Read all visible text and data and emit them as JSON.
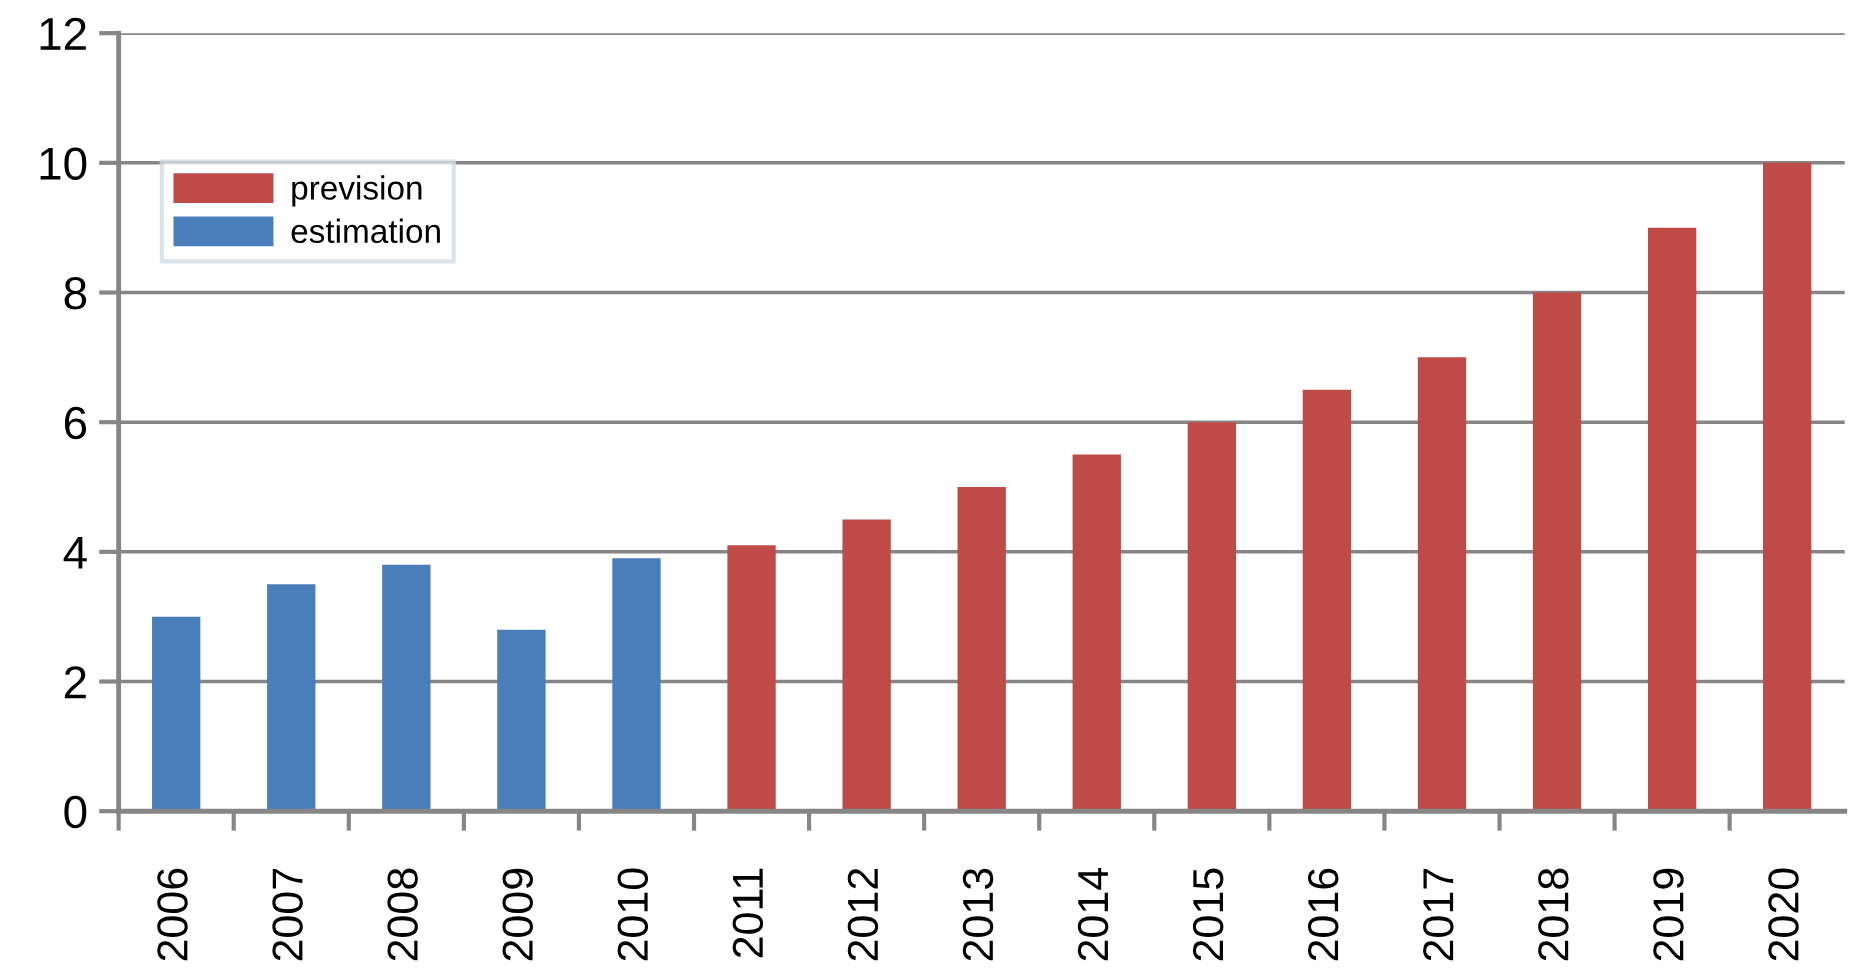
{
  "chart_data": {
    "type": "bar",
    "categories": [
      "2006",
      "2007",
      "2008",
      "2009",
      "2010",
      "2011",
      "2012",
      "2013",
      "2014",
      "2015",
      "2016",
      "2017",
      "2018",
      "2019",
      "2020"
    ],
    "series": [
      {
        "name": "prevision",
        "color": "#be4b48",
        "values": [
          null,
          null,
          null,
          null,
          null,
          4.1,
          4.5,
          5.0,
          5.5,
          6.0,
          6.5,
          7.0,
          8.0,
          9.0,
          10.0
        ]
      },
      {
        "name": "estimation",
        "color": "#4a7ebb",
        "values": [
          3.0,
          3.5,
          3.8,
          2.8,
          3.9,
          null,
          null,
          null,
          null,
          null,
          null,
          null,
          null,
          null,
          null
        ]
      }
    ],
    "ylim": [
      0,
      12
    ],
    "yticks": [
      0,
      2,
      4,
      6,
      8,
      10,
      12
    ],
    "grid": "y",
    "legend": "top left"
  }
}
